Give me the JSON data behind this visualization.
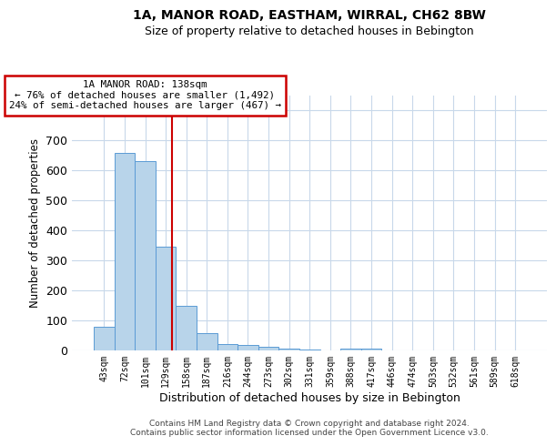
{
  "title1": "1A, MANOR ROAD, EASTHAM, WIRRAL, CH62 8BW",
  "title2": "Size of property relative to detached houses in Bebington",
  "xlabel": "Distribution of detached houses by size in Bebington",
  "ylabel": "Number of detached properties",
  "footer1": "Contains HM Land Registry data © Crown copyright and database right 2024.",
  "footer2": "Contains public sector information licensed under the Open Government Licence v3.0.",
  "annotation_line1": "1A MANOR ROAD: 138sqm",
  "annotation_line2": "← 76% of detached houses are smaller (1,492)",
  "annotation_line3": "24% of semi-detached houses are larger (467) →",
  "bar_color": "#b8d4ea",
  "bar_edge_color": "#5b9bd5",
  "vline_color": "#cc0000",
  "annotation_box_edge": "#cc0000",
  "annotation_box_face": "#ffffff",
  "grid_color": "#c8d8ea",
  "background_color": "#ffffff",
  "categories": [
    "43sqm",
    "72sqm",
    "101sqm",
    "129sqm",
    "158sqm",
    "187sqm",
    "216sqm",
    "244sqm",
    "273sqm",
    "302sqm",
    "331sqm",
    "359sqm",
    "388sqm",
    "417sqm",
    "446sqm",
    "474sqm",
    "503sqm",
    "532sqm",
    "561sqm",
    "589sqm",
    "618sqm"
  ],
  "values": [
    80,
    660,
    630,
    345,
    150,
    57,
    22,
    17,
    12,
    5,
    3,
    0,
    6,
    5,
    0,
    0,
    0,
    0,
    0,
    0,
    0
  ],
  "vline_position": 3.31,
  "ylim": [
    0,
    850
  ],
  "yticks": [
    0,
    100,
    200,
    300,
    400,
    500,
    600,
    700,
    800
  ]
}
